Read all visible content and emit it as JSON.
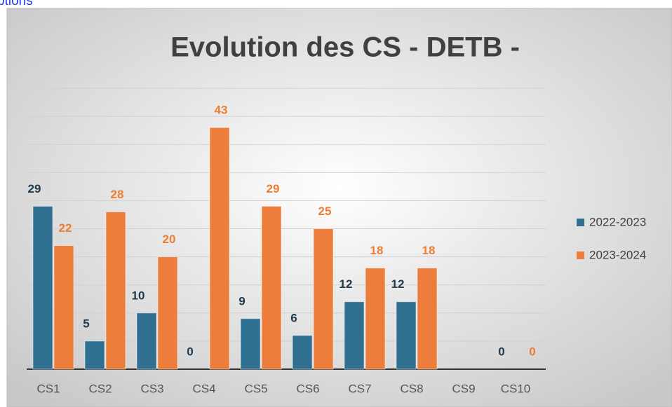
{
  "link_text": "ptions",
  "chart_data": {
    "type": "bar",
    "title": "Evolution des CS - DETB -",
    "categories": [
      "CS1",
      "CS2",
      "CS3",
      "CS4",
      "CS5",
      "CS6",
      "CS7",
      "CS8",
      "CS9",
      "CS10"
    ],
    "series": [
      {
        "name": "2022-2023",
        "color": "#2f6f8f",
        "values": [
          29,
          5,
          10,
          0,
          9,
          6,
          12,
          12,
          null,
          0
        ]
      },
      {
        "name": "2023-2024",
        "color": "#ed7d3b",
        "values": [
          22,
          28,
          20,
          43,
          29,
          25,
          18,
          18,
          null,
          0
        ]
      }
    ],
    "ylim": [
      0,
      50
    ],
    "yticks": [
      0,
      5,
      10,
      15,
      20,
      25,
      30,
      35,
      40,
      45,
      50
    ],
    "grid": true,
    "legend": "right"
  }
}
